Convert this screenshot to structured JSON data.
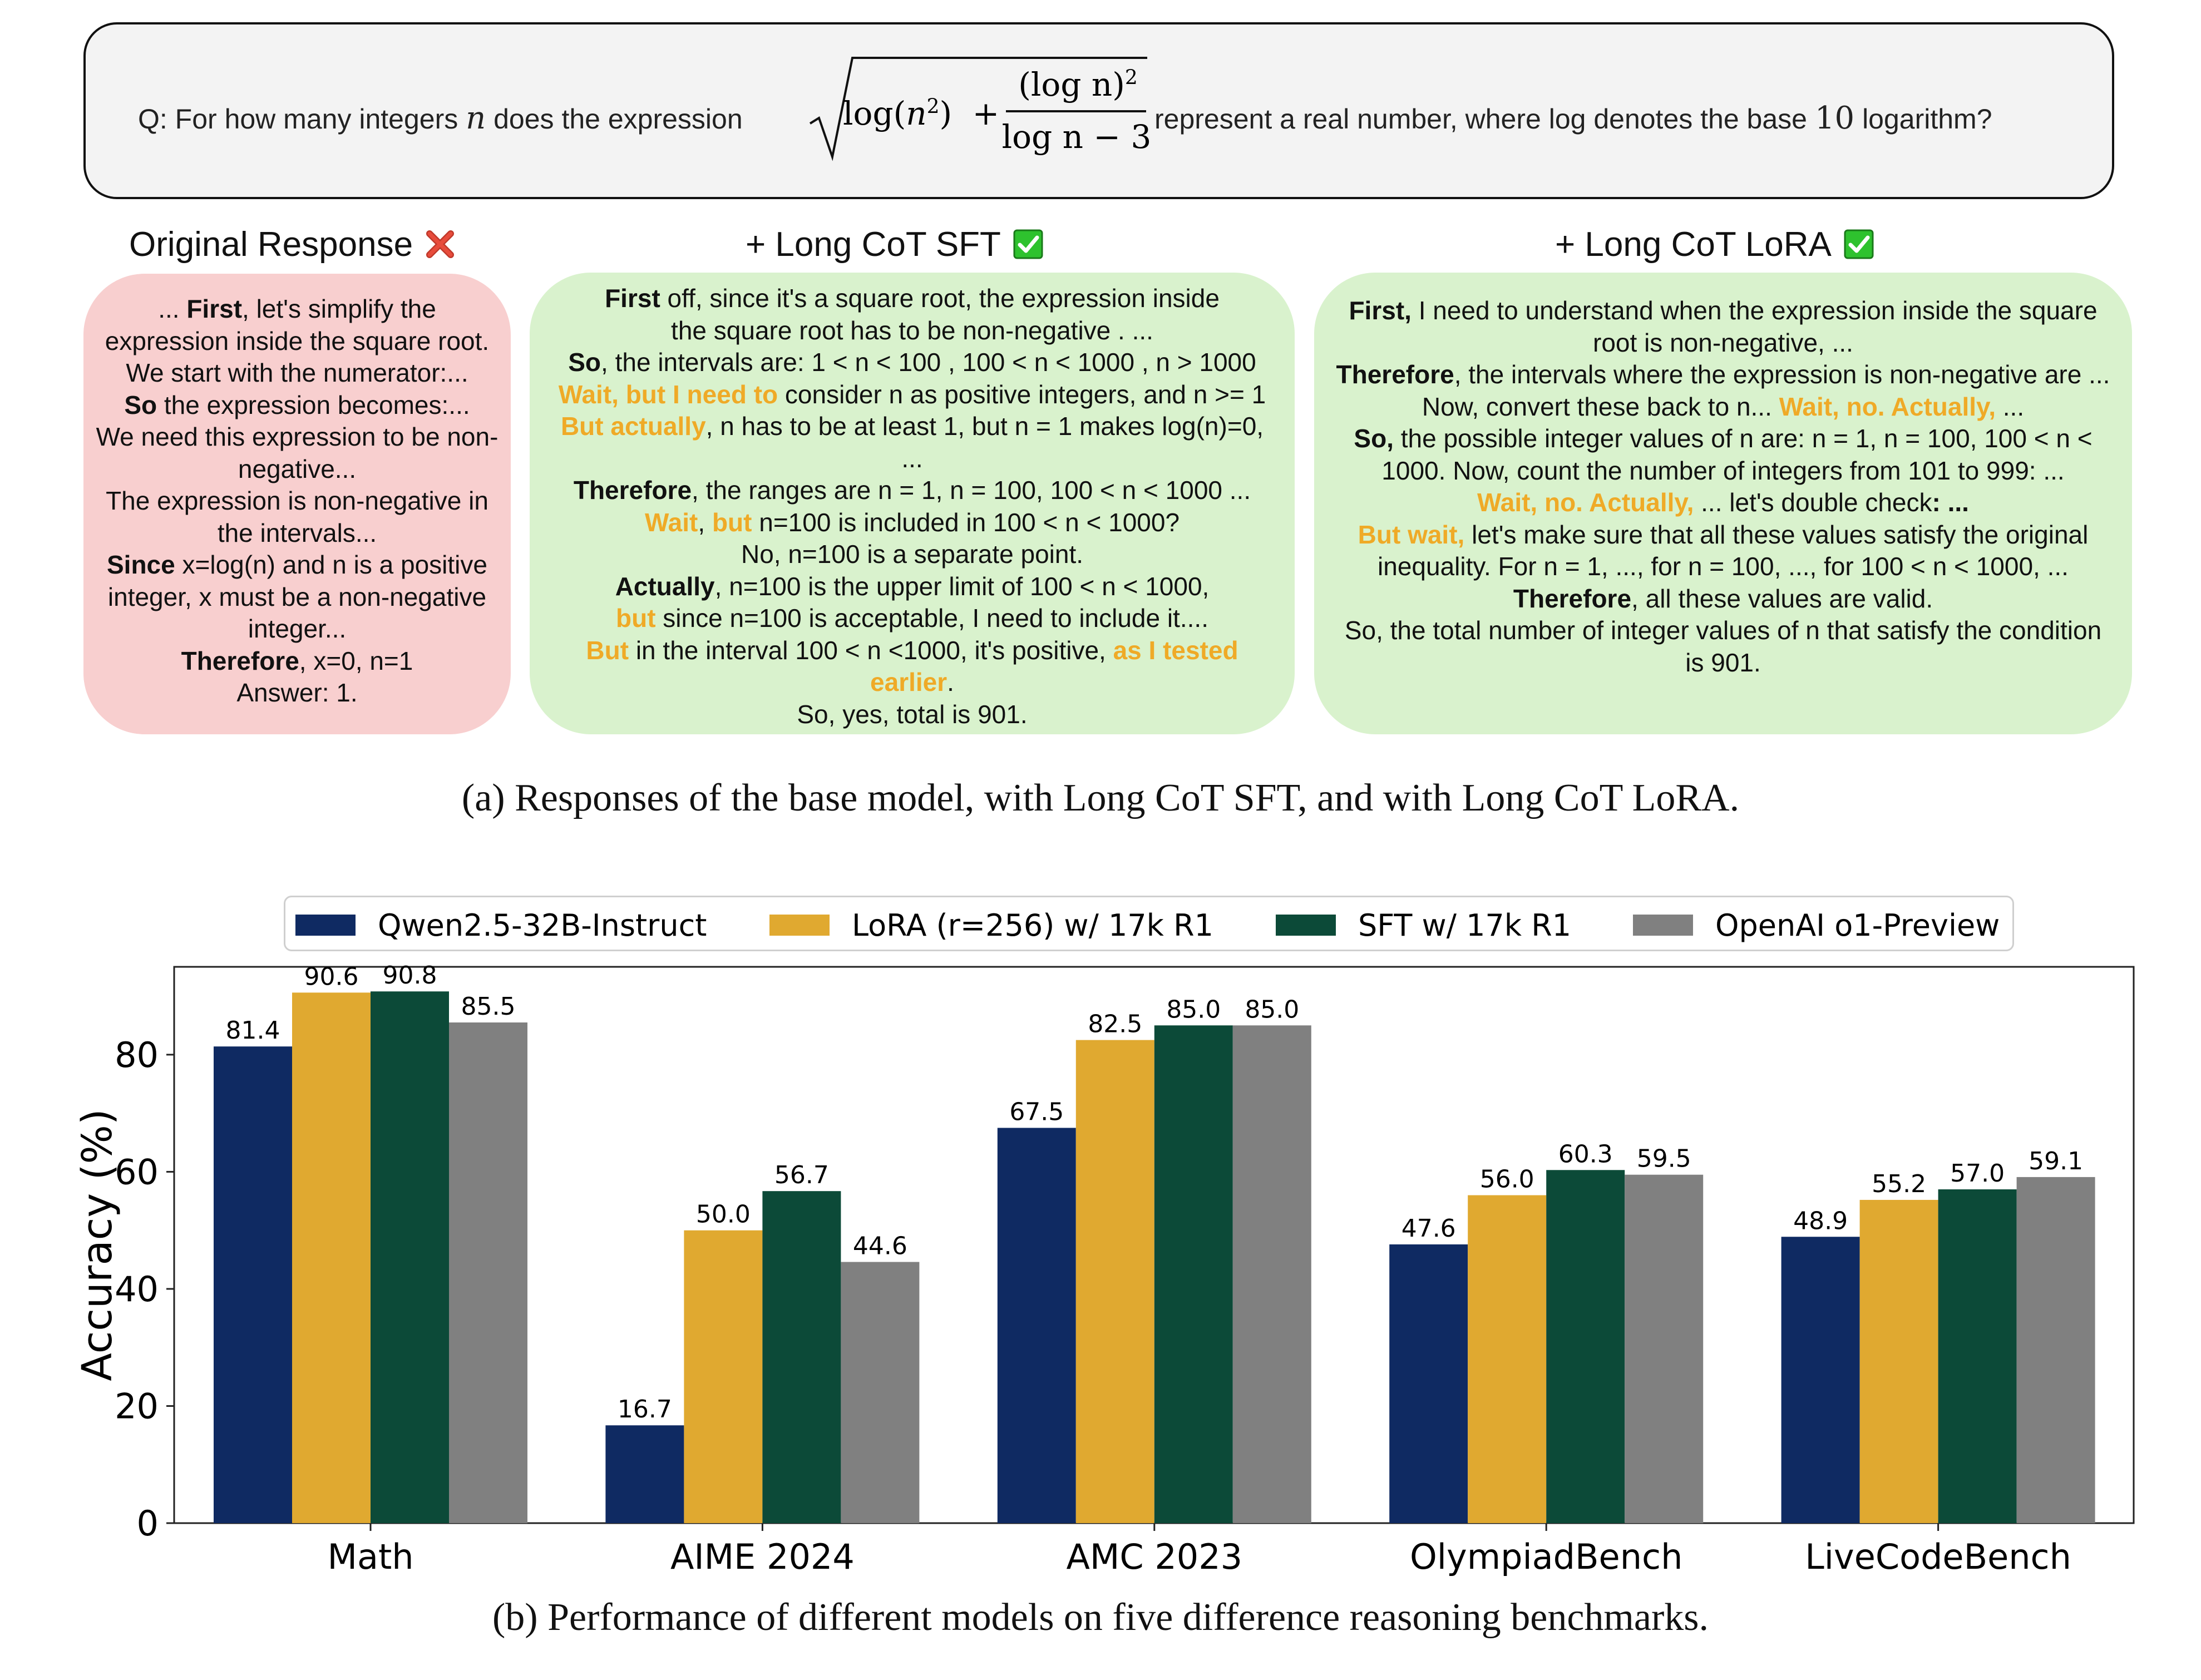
{
  "question": {
    "prefix": "Q: For how many integers",
    "var_n": "n",
    "mid": "does the expression",
    "rad_log": "log(",
    "rad_n2": "n",
    "rad_sup2": "2",
    "rad_close": ")",
    "plus": "+",
    "frac_num": "(log n)",
    "frac_num_sup": "2",
    "frac_den": "log n − 3",
    "suffix": "represent a real number, where log denotes the base",
    "ten": "10",
    "end": "logarithm?"
  },
  "panels": {
    "original": {
      "title": "Original Response",
      "status": "incorrect",
      "lines": [
        [
          {
            "t": "... "
          },
          {
            "t": "First",
            "s": "b"
          },
          {
            "t": ", let's simplify the"
          }
        ],
        [
          {
            "t": "expression inside the square root."
          }
        ],
        [
          {
            "t": "We start with the numerator:..."
          }
        ],
        [
          {
            "t": "So",
            "s": "b"
          },
          {
            "t": " the expression becomes:..."
          }
        ],
        [
          {
            "t": "We need this expression to be non-"
          }
        ],
        [
          {
            "t": "negative..."
          }
        ],
        [
          {
            "t": "The expression is non-negative in"
          }
        ],
        [
          {
            "t": "the intervals..."
          }
        ],
        [
          {
            "t": "Since",
            "s": "b"
          },
          {
            "t": " x=log(n) and n is a positive"
          }
        ],
        [
          {
            "t": "integer, x must be a non-negative"
          }
        ],
        [
          {
            "t": "integer..."
          }
        ],
        [
          {
            "t": "Therefore",
            "s": "b"
          },
          {
            "t": ", x=0, n=1"
          }
        ],
        [
          {
            "t": "Answer: 1."
          }
        ]
      ]
    },
    "sft": {
      "title": "+ Long CoT SFT",
      "status": "correct",
      "lines": [
        [
          {
            "t": "First",
            "s": "b"
          },
          {
            "t": " off, since it's a square root, the expression inside"
          }
        ],
        [
          {
            "t": "the square root has to be non-negative . ..."
          }
        ],
        [
          {
            "t": "So",
            "s": "b"
          },
          {
            "t": ", the intervals are: 1 < n < 100 , 100 < n < 1000 , n > 1000"
          }
        ],
        [
          {
            "t": "Wait, but I need to",
            "s": "o"
          },
          {
            "t": " consider n as positive integers, and n >= 1"
          }
        ],
        [
          {
            "t": "But actually",
            "s": "o"
          },
          {
            "t": ", n has to be at least 1, but n = 1 makes log(n)=0,"
          }
        ],
        [
          {
            "t": "..."
          }
        ],
        [
          {
            "t": "Therefore",
            "s": "b"
          },
          {
            "t": ", the ranges are n = 1, n = 100, 100 < n < 1000 ..."
          }
        ],
        [
          {
            "t": "Wait",
            "s": "o"
          },
          {
            "t": ", "
          },
          {
            "t": "but",
            "s": "o"
          },
          {
            "t": " n=100 is included in 100 < n < 1000?"
          }
        ],
        [
          {
            "t": "No, n=100 is a separate point."
          }
        ],
        [
          {
            "t": "Actually",
            "s": "b"
          },
          {
            "t": ", n=100 is the upper limit of 100 < n < 1000,"
          }
        ],
        [
          {
            "t": "but",
            "s": "o"
          },
          {
            "t": " since n=100 is acceptable, I need to include it...."
          }
        ],
        [
          {
            "t": "But",
            "s": "o"
          },
          {
            "t": " in the interval 100 < n <1000, it's positive, "
          },
          {
            "t": "as I tested",
            "s": "o"
          }
        ],
        [
          {
            "t": "earlier",
            "s": "o"
          },
          {
            "t": "."
          }
        ],
        [
          {
            "t": "So, yes, total is 901."
          }
        ]
      ]
    },
    "lora": {
      "title": "+ Long CoT LoRA",
      "status": "correct",
      "lines": [
        [
          {
            "t": "First,",
            "s": "b"
          },
          {
            "t": " I need to understand when the expression inside the square"
          }
        ],
        [
          {
            "t": "root is non-negative, ..."
          }
        ],
        [
          {
            "t": "Therefore",
            "s": "b"
          },
          {
            "t": ", the intervals where the expression is non-negative are ..."
          }
        ],
        [
          {
            "t": "Now, convert these back to n... "
          },
          {
            "t": "Wait, no. Actually,",
            "s": "o"
          },
          {
            "t": " ..."
          }
        ],
        [
          {
            "t": "So,",
            "s": "b"
          },
          {
            "t": " the possible integer values of n are: n = 1, n = 100, 100 < n <"
          }
        ],
        [
          {
            "t": "1000. Now, count the number of integers from 101 to 999: ..."
          }
        ],
        [
          {
            "t": "Wait, no. Actually,",
            "s": "o"
          },
          {
            "t": " ... let's double check"
          },
          {
            "t": ": ...",
            "s": "b"
          }
        ],
        [
          {
            "t": "But wait,",
            "s": "o"
          },
          {
            "t": " let's make sure that all these values satisfy the original"
          }
        ],
        [
          {
            "t": "inequality. For n = 1, ..., for n = 100, ..., for 100 < n < 1000, ..."
          }
        ],
        [
          {
            "t": "Therefore",
            "s": "b"
          },
          {
            "t": ", all these values are valid."
          }
        ],
        [
          {
            "t": "So, the total number of integer values of n that satisfy the condition"
          }
        ],
        [
          {
            "t": "is 901."
          }
        ]
      ]
    }
  },
  "captions": {
    "a": "(a) Responses of the base model, with Long CoT SFT, and with Long CoT LoRA.",
    "b": "(b) Performance of different models on five difference reasoning benchmarks."
  },
  "chart_data": {
    "type": "bar",
    "title": "",
    "xlabel": "",
    "ylabel": "Accuracy (%)",
    "ylim": [
      0,
      95
    ],
    "yticks": [
      0,
      20,
      40,
      60,
      80
    ],
    "grid": false,
    "legend_position": "top-center",
    "categories": [
      "Math",
      "AIME 2024",
      "AMC 2023",
      "OlympiadBench",
      "LiveCodeBench"
    ],
    "series": [
      {
        "name": "Qwen2.5-32B-Instruct",
        "color": "#0f2a62",
        "values": [
          81.4,
          16.7,
          67.5,
          47.6,
          48.9
        ]
      },
      {
        "name": "LoRA (r=256) w/ 17k R1",
        "color": "#e0a930",
        "values": [
          90.6,
          50.0,
          82.5,
          56.0,
          55.2
        ]
      },
      {
        "name": "SFT w/ 17k R1",
        "color": "#0c4a38",
        "values": [
          90.8,
          56.7,
          85.0,
          60.3,
          57.0
        ]
      },
      {
        "name": "OpenAI o1-Preview",
        "color": "#808080",
        "values": [
          85.5,
          44.6,
          85.0,
          59.5,
          59.1
        ]
      }
    ]
  },
  "colors": {
    "highlight": "#efaa27",
    "red_box": "#f8cfcf",
    "green_box": "#d9f2cd"
  }
}
